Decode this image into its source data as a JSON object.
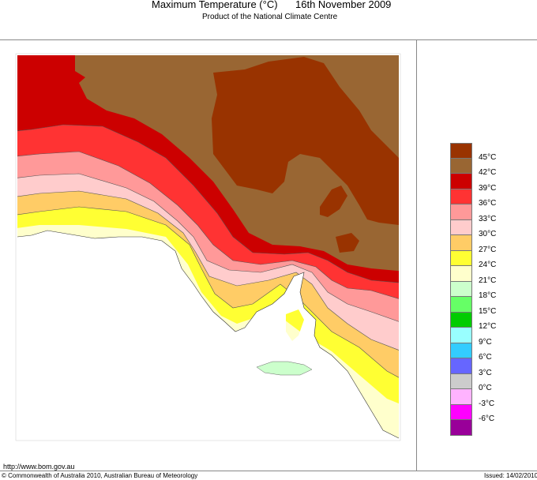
{
  "header": {
    "title": "Maximum Temperature (°C)",
    "date": "16th November 2009",
    "subtitle": "Product of the National Climate Centre"
  },
  "legend": {
    "colors": [
      "#993300",
      "#996633",
      "#cc0000",
      "#ff3333",
      "#ff9999",
      "#ffcccc",
      "#ffcc66",
      "#ffff33",
      "#ffffcc",
      "#ccffcc",
      "#66ff66",
      "#00cc00",
      "#99ffff",
      "#33ccff",
      "#6666ff",
      "#cccccc",
      "#ffb3ff",
      "#ff00ff",
      "#990099"
    ],
    "labels": [
      "45°C",
      "42°C",
      "39°C",
      "36°C",
      "33°C",
      "30°C",
      "27°C",
      "24°C",
      "21°C",
      "18°C",
      "15°C",
      "12°C",
      "9°C",
      "6°C",
      "3°C",
      "0°C",
      "-3°C",
      "-6°C"
    ]
  },
  "footer": {
    "url": "http://www.bom.gov.au",
    "copyright": "© Commonwealth of Australia 2010, Australian Bureau of Meteorology",
    "issued": "Issued: 14/02/2010"
  }
}
